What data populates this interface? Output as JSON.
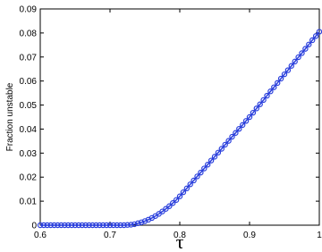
{
  "chart_data": {
    "type": "line",
    "xlabel": "τ",
    "ylabel": "Fraction unstable",
    "x": [
      0.6,
      0.605,
      0.61,
      0.615,
      0.62,
      0.625,
      0.63,
      0.635,
      0.64,
      0.645,
      0.65,
      0.655,
      0.66,
      0.665,
      0.67,
      0.675,
      0.68,
      0.685,
      0.69,
      0.695,
      0.7,
      0.705,
      0.71,
      0.715,
      0.72,
      0.725,
      0.73,
      0.735,
      0.74,
      0.745,
      0.75,
      0.755,
      0.76,
      0.765,
      0.77,
      0.775,
      0.78,
      0.785,
      0.79,
      0.795,
      0.8,
      0.805,
      0.81,
      0.815,
      0.82,
      0.825,
      0.83,
      0.835,
      0.84,
      0.845,
      0.85,
      0.855,
      0.86,
      0.865,
      0.87,
      0.875,
      0.88,
      0.885,
      0.89,
      0.895,
      0.9,
      0.905,
      0.91,
      0.915,
      0.92,
      0.925,
      0.93,
      0.935,
      0.94,
      0.945,
      0.95,
      0.955,
      0.96,
      0.965,
      0.97,
      0.975,
      0.98,
      0.985,
      0.99,
      0.995,
      1.0
    ],
    "series": [
      {
        "color": "#2a3fdc",
        "values": [
          0,
          0,
          0,
          0,
          0,
          0,
          0,
          0,
          0,
          0,
          0,
          0,
          0,
          0,
          0,
          0,
          0,
          0,
          0,
          0,
          0,
          0,
          0,
          0,
          0,
          0.0001,
          0.0002,
          0.0004,
          0.0008,
          0.0012,
          0.0017,
          0.0023,
          0.003,
          0.0038,
          0.0047,
          0.0057,
          0.0068,
          0.0079,
          0.0092,
          0.0105,
          0.012,
          0.0137,
          0.0153,
          0.017,
          0.0186,
          0.0203,
          0.0219,
          0.0236,
          0.0252,
          0.0269,
          0.0285,
          0.0302,
          0.0318,
          0.0335,
          0.0351,
          0.0368,
          0.0384,
          0.0401,
          0.0417,
          0.0434,
          0.045,
          0.0468,
          0.0486,
          0.0503,
          0.0521,
          0.0539,
          0.0557,
          0.0574,
          0.0592,
          0.061,
          0.0628,
          0.0645,
          0.0663,
          0.0681,
          0.0699,
          0.0716,
          0.0734,
          0.0752,
          0.077,
          0.0787,
          0.0805
        ]
      }
    ],
    "xlim": [
      0.6,
      1
    ],
    "xticks": [
      0.6,
      0.7,
      0.8,
      0.9,
      1
    ],
    "ylim": [
      0,
      0.09
    ],
    "yticks": [
      0,
      0.01,
      0.02,
      0.03,
      0.04,
      0.05,
      0.06,
      0.07,
      0.08,
      0.09
    ],
    "grid": false
  }
}
